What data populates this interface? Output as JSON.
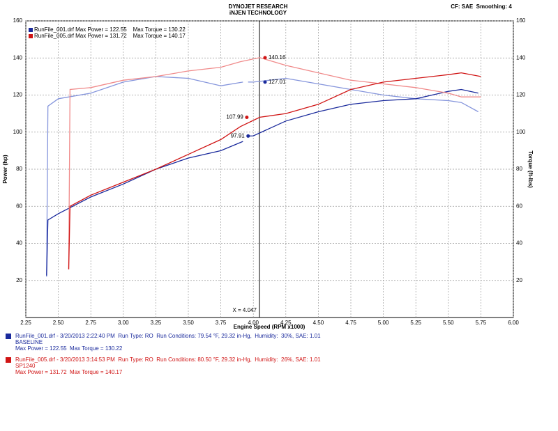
{
  "chart_data": {
    "type": "line",
    "title": "DYNOJET RESEARCH",
    "subtitle": "iNJEN TECHNOLOGY",
    "header_right": "CF: SAE  Smoothing: 4",
    "x_label": "Engine Speed (RPM x1000)",
    "y_label": "Power (hp)",
    "y2_label": "Torque (ft-lbs)",
    "xlim": [
      2.25,
      6.0
    ],
    "xticks": [
      2.25,
      {
        "value": 2.5,
        "label": "2.50"
      },
      2.75,
      {
        "value": 3.0,
        "label": "3.00"
      },
      3.25,
      {
        "value": 3.5,
        "label": "3.50"
      },
      3.75,
      {
        "value": 4.0,
        "label": "4.00"
      },
      4.25,
      {
        "value": 4.5,
        "label": "4.50"
      },
      4.75,
      {
        "value": 5.0,
        "label": "5.00"
      },
      5.25,
      {
        "value": 5.5,
        "label": "5.50"
      },
      5.75,
      {
        "value": 6.0,
        "label": "6.00"
      }
    ],
    "ylim": [
      0,
      160
    ],
    "yticks": [
      20,
      40,
      60,
      80,
      100,
      120,
      140,
      160
    ],
    "y2lim": [
      0,
      160
    ],
    "y2ticks": [
      20,
      40,
      60,
      80,
      100,
      120,
      140,
      160
    ],
    "grid": true,
    "cursor": {
      "label": "X = 4.047",
      "x": 4.047
    },
    "series": [
      {
        "name": "BASELINE",
        "color": "#1a2a9c",
        "torque_color": "#8595dc",
        "legend": "RunFile_001.drf Max Power = 122.55    Max Torque = 130.22",
        "run_line": "RunFile_001.drf - 3/20/2013 2:22:40 PM  Run Type: RO  Run Conditions: 79.54 °F, 29.32 in-Hg,  Humidity:  30%, SAE: 1.01",
        "max_line": "Max Power = 122.55  Max Torque = 130.22",
        "x": [
          2.41,
          2.42,
          2.5,
          2.75,
          3.0,
          3.25,
          3.5,
          3.75,
          3.92,
          3.94,
          3.96,
          4.0,
          4.25,
          4.5,
          4.75,
          5.0,
          5.25,
          5.5,
          5.6,
          5.73
        ],
        "power": [
          22.6,
          52.6,
          56,
          65,
          72,
          80,
          86,
          90,
          95,
          null,
          97.91,
          98,
          106,
          111,
          115,
          117,
          118,
          122,
          123,
          121
        ],
        "torque": [
          22,
          114,
          118,
          121,
          127,
          130,
          129,
          125,
          127,
          null,
          127.01,
          127,
          129,
          126,
          123,
          120,
          118,
          117,
          116,
          111
        ]
      },
      {
        "name": "SP1240",
        "color": "#d01414",
        "torque_color": "#f08a8a",
        "legend": "RunFile_005.drf Max Power = 131.72    Max Torque = 140.17",
        "run_line": "RunFile_005.drf - 3/20/2013 3:14:53 PM  Run Type: RO  Run Conditions: 80.50 °F, 29.32 in-Hg,  Humidity:  26%, SAE: 1.01",
        "max_line": "Max Power = 131.72  Max Torque = 140.17",
        "x": [
          2.58,
          2.59,
          2.75,
          3.0,
          3.25,
          3.5,
          3.75,
          3.9,
          4.05,
          4.25,
          4.5,
          4.75,
          5.0,
          5.25,
          5.5,
          5.6,
          5.75
        ],
        "power": [
          26,
          60,
          66,
          73,
          80,
          88,
          96,
          103,
          108,
          110,
          115,
          123,
          127,
          129,
          131,
          132,
          130
        ],
        "torque": [
          26,
          123,
          124,
          128,
          130,
          133,
          135,
          138,
          140.16,
          136,
          132,
          128,
          126,
          124,
          121,
          119,
          119
        ]
      }
    ],
    "annotations": [
      {
        "label": "140.16",
        "x": 4.09,
        "y": 140.16,
        "series": 1
      },
      {
        "label": "127.01",
        "x": 4.09,
        "y": 127.01,
        "series": 0
      },
      {
        "label": "107.99",
        "x": 3.95,
        "y": 107.99,
        "series": 1
      },
      {
        "label": "97.91",
        "x": 3.96,
        "y": 97.91,
        "series": 0
      }
    ]
  }
}
